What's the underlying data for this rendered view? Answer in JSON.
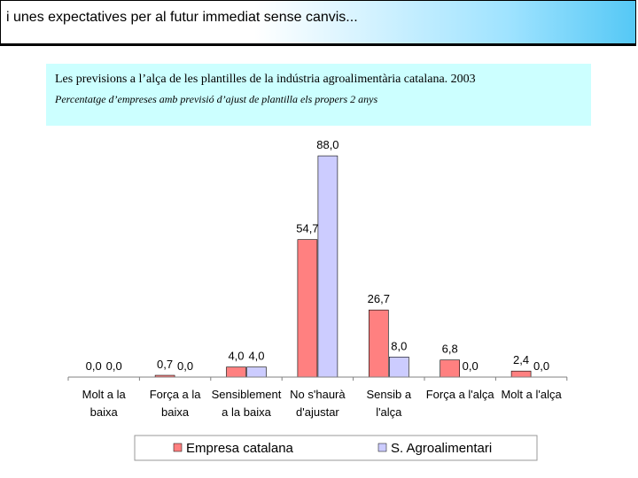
{
  "header": {
    "title": "i unes expectatives per al futur immediat sense canvis..."
  },
  "chart_data": {
    "type": "bar",
    "title": "Les previsions a l’alça de les plantilles de la indústria agroalimentària catalana. 2003",
    "subtitle": "Percentatge d’empreses amb previsió d’ajust de plantilla els propers 2 anys",
    "categories": [
      [
        "Molt a la",
        "baixa"
      ],
      [
        "Força a la",
        "baixa"
      ],
      [
        "Sensiblement",
        "a la baixa"
      ],
      [
        "No s'haurà",
        "d'ajustar"
      ],
      [
        "Sensib a",
        "l'alça"
      ],
      [
        "Força a l'alça"
      ],
      [
        "Molt a l'alça"
      ]
    ],
    "series": [
      {
        "name": "Empresa catalana",
        "color": "#ff8080",
        "values": [
          0.0,
          0.7,
          4.0,
          54.7,
          26.7,
          6.8,
          2.4
        ],
        "labels": [
          "0,0",
          "0,7",
          "4,0",
          "54,7",
          "26,7",
          "6,8",
          "2,4"
        ]
      },
      {
        "name": "S. Agroalimentari",
        "color": "#ccccff",
        "values": [
          0.0,
          0.0,
          4.0,
          88.0,
          8.0,
          0.0,
          0.0
        ],
        "labels": [
          "0,0",
          "0,0",
          "4,0",
          "88,0",
          "8,0",
          "0,0",
          "0,0"
        ]
      }
    ],
    "ylim": [
      0,
      100
    ],
    "grid": false,
    "legend_position": "bottom"
  }
}
